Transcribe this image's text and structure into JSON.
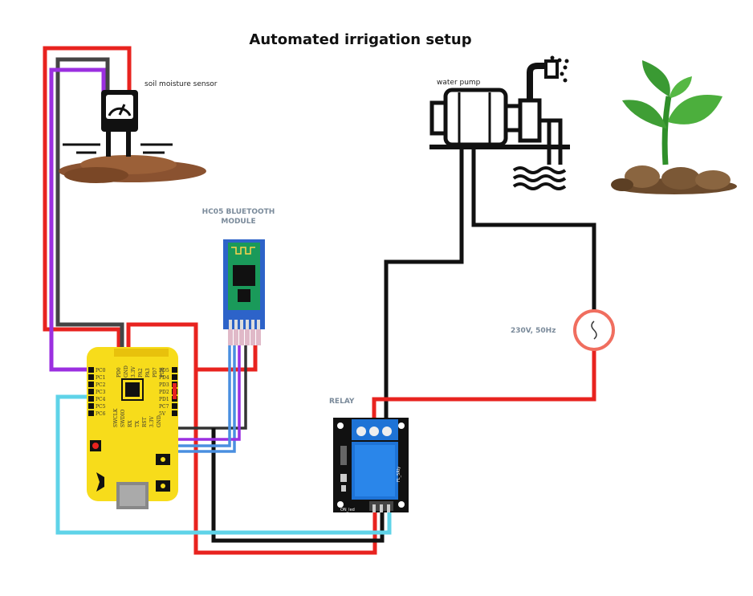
{
  "title": "Automated irrigation setup",
  "labels": {
    "soil_sensor": "soil moisture sensor",
    "water_pump": "water pump",
    "bt_line1": "HC05 BLUETOOTH",
    "bt_line2": "MODULE",
    "relay": "RELAY",
    "mains": "230V, 50Hz",
    "relay_chip": "FL_5Rly",
    "relay_led": "ON_led"
  },
  "board_pins": {
    "left": [
      "PC0",
      "PC1",
      "PC2",
      "PC3",
      "PC4",
      "PC5",
      "PC6"
    ],
    "top": [
      "PD0",
      "GND",
      "3.3V",
      "PA2",
      "PA3",
      "PD7",
      "PD6"
    ],
    "right": [
      "PD5",
      "PD4",
      "PD3",
      "PD2",
      "PD1",
      "PC7",
      "5V"
    ],
    "bottom": [
      "SWCLK",
      "SWDIO",
      "RX",
      "TX",
      "RST",
      "3.3V",
      "GND"
    ]
  },
  "colors": {
    "red": "#e8231f",
    "black": "#111111",
    "purple": "#9b2fe0",
    "gray": "#444444",
    "cyan": "#5fd3e8",
    "blue": "#4a8fe0",
    "board": "#f7dc1b",
    "relay_blue": "#1e73d6",
    "bt_blue": "#2d63c9",
    "bt_green": "#1a9a5a"
  },
  "icons": [
    "soil-sensor-icon",
    "water-pump-icon",
    "plant-icon",
    "ac-source-icon"
  ]
}
